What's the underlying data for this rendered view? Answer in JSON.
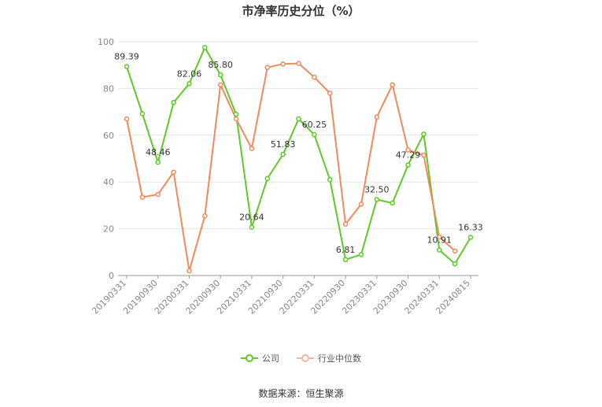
{
  "title": "市净率历史分位（%）",
  "source": "数据来源：恒生聚源",
  "colors": {
    "company": "#5fc927",
    "industry": "#f08a5d",
    "grid": "#e6e6e6",
    "axis": "#999999"
  },
  "chart_data": {
    "type": "line",
    "title": "市净率历史分位（%）",
    "ylim": [
      0,
      100
    ],
    "yticks": [
      0,
      20,
      40,
      60,
      80,
      100
    ],
    "grid": true,
    "legend_position": "bottom",
    "x_tick_labels": [
      "20190331",
      "20190930",
      "20200331",
      "20200930",
      "20210331",
      "20210930",
      "20220331",
      "20220930",
      "20230331",
      "20230930",
      "20240331",
      "20240815"
    ],
    "x": [
      "20190331",
      "20190630",
      "20190930",
      "20191231",
      "20200331",
      "20200630",
      "20200930",
      "20201231",
      "20210331",
      "20210630",
      "20210930",
      "20211231",
      "20220331",
      "20220630",
      "20220930",
      "20221231",
      "20230331",
      "20230630",
      "20230930",
      "20231231",
      "20240331",
      "20240630",
      "20240815"
    ],
    "series": [
      {
        "name": "公司",
        "values": [
          89.39,
          69.2,
          48.46,
          74.0,
          82.06,
          97.5,
          85.8,
          69.0,
          20.64,
          41.5,
          51.83,
          67.0,
          60.25,
          41.0,
          6.81,
          9.0,
          32.5,
          31.0,
          47.29,
          60.5,
          10.91,
          5.0,
          16.33
        ],
        "labels": {
          "0": "89.39",
          "2": "48.46",
          "4": "82.06",
          "6": "85.80",
          "8": "20.64",
          "10": "51.83",
          "12": "60.25",
          "14": "6.81",
          "16": "32.50",
          "18": "47.29",
          "20": "10.91",
          "22": "16.33"
        }
      },
      {
        "name": "行业中位数",
        "values": [
          67.0,
          33.5,
          34.7,
          44.2,
          2.0,
          25.5,
          81.6,
          67.0,
          54.3,
          89.0,
          90.5,
          90.7,
          84.8,
          78.0,
          22.0,
          30.5,
          67.8,
          81.6,
          53.7,
          51.5,
          16.5,
          10.5,
          null
        ]
      }
    ]
  }
}
